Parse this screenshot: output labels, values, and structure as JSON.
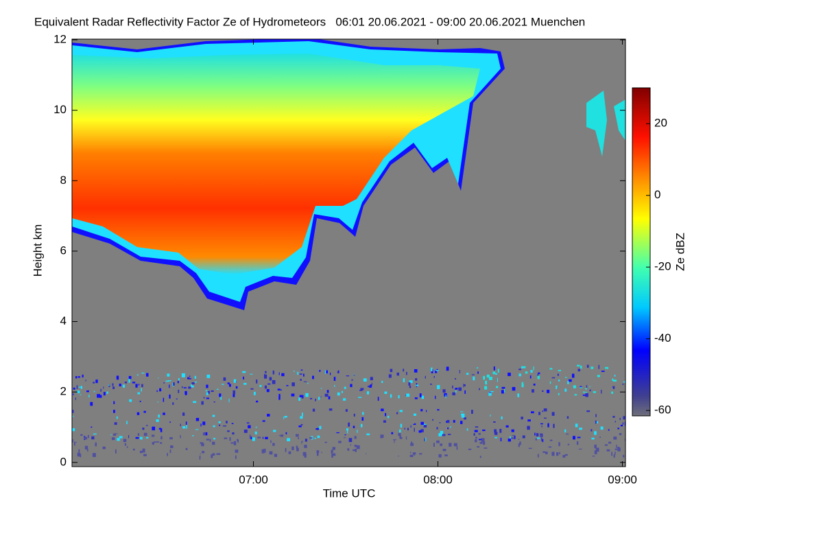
{
  "chart_data": {
    "type": "heatmap",
    "title": "Equivalent Radar Reflectivity Factor Ze of Hydrometeors   06:01 20.06.2021 - 09:00 20.06.2021 Muenchen",
    "x_label": "Time UTC",
    "y_label": "Height km",
    "xlim": [
      361,
      541
    ],
    "xticks": [
      {
        "value": 420,
        "label": "07:00"
      },
      {
        "value": 480,
        "label": "08:00"
      },
      {
        "value": 540,
        "label": "09:00"
      }
    ],
    "ylim": [
      -0.12,
      12.02
    ],
    "yticks": [
      0,
      2,
      4,
      6,
      8,
      10,
      12
    ],
    "colorbar": {
      "label": "Ze dBZ",
      "lim": [
        -61.5,
        30
      ],
      "ticks": [
        -60,
        -40,
        -20,
        0,
        20
      ]
    }
  }
}
